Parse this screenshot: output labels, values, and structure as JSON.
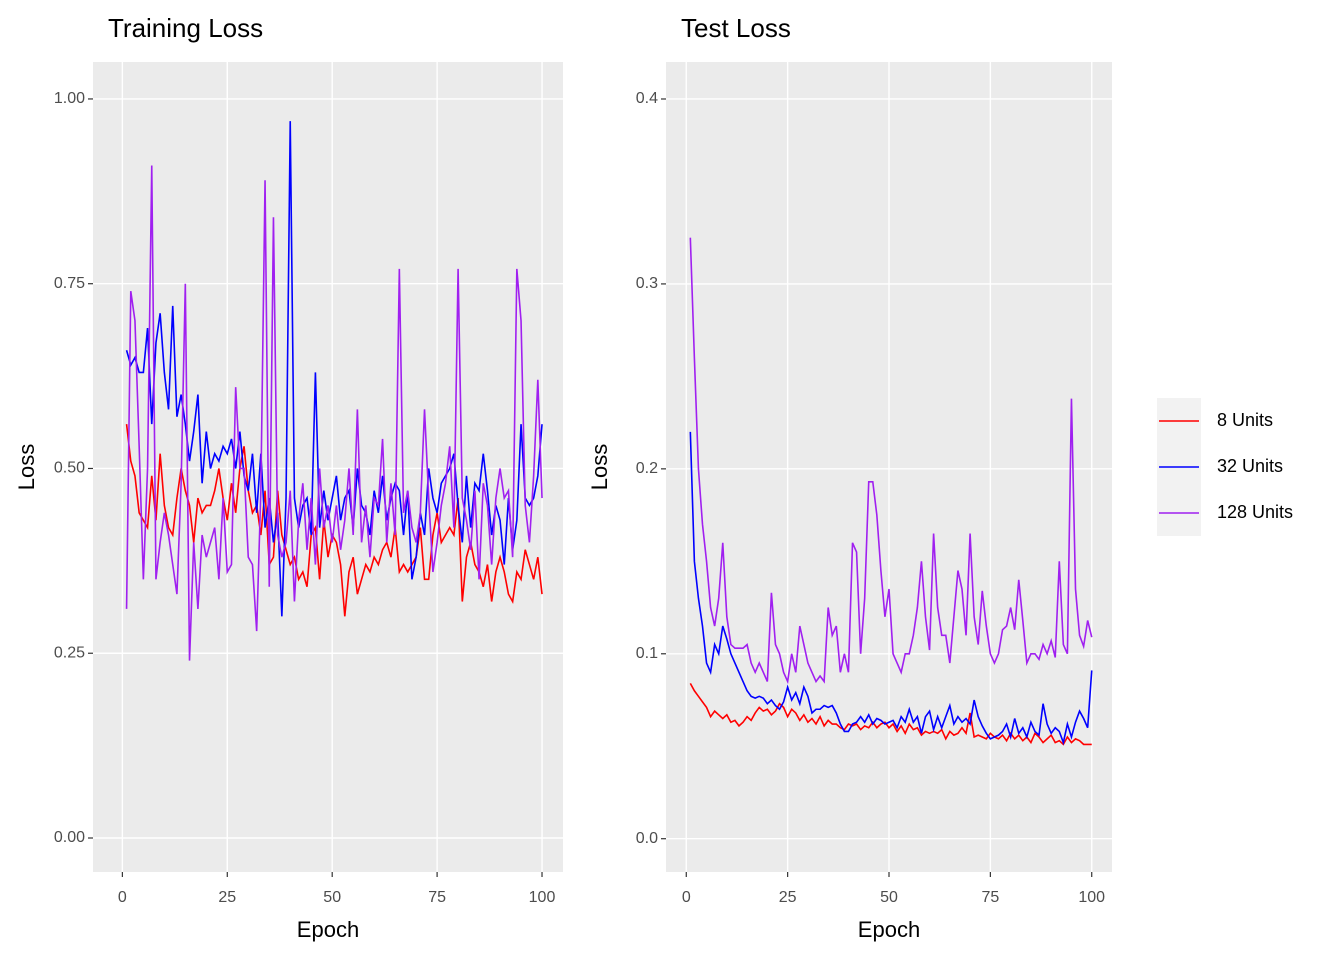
{
  "chart_data": [
    {
      "type": "line",
      "title": "Training Loss",
      "x_label": "Epoch",
      "y_label": "Loss",
      "x": [
        1,
        2,
        3,
        4,
        5,
        6,
        7,
        8,
        9,
        10,
        11,
        12,
        13,
        14,
        15,
        16,
        17,
        18,
        19,
        20,
        21,
        22,
        23,
        24,
        25,
        26,
        27,
        28,
        29,
        30,
        31,
        32,
        33,
        34,
        35,
        36,
        37,
        38,
        39,
        40,
        41,
        42,
        43,
        44,
        45,
        46,
        47,
        48,
        49,
        50,
        51,
        52,
        53,
        54,
        55,
        56,
        57,
        58,
        59,
        60,
        61,
        62,
        63,
        64,
        65,
        66,
        67,
        68,
        69,
        70,
        71,
        72,
        73,
        74,
        75,
        76,
        77,
        78,
        79,
        80,
        81,
        82,
        83,
        84,
        85,
        86,
        87,
        88,
        89,
        90,
        91,
        92,
        93,
        94,
        95,
        96,
        97,
        98,
        99,
        100
      ],
      "series": [
        {
          "name": "8 Units",
          "color": "#ff0000",
          "values": [
            0.56,
            0.51,
            0.49,
            0.44,
            0.43,
            0.42,
            0.49,
            0.43,
            0.52,
            0.45,
            0.42,
            0.41,
            0.46,
            0.5,
            0.47,
            0.45,
            0.4,
            0.46,
            0.44,
            0.45,
            0.45,
            0.47,
            0.5,
            0.46,
            0.43,
            0.48,
            0.44,
            0.5,
            0.53,
            0.47,
            0.44,
            0.45,
            0.41,
            0.47,
            0.37,
            0.38,
            0.47,
            0.41,
            0.39,
            0.37,
            0.38,
            0.35,
            0.36,
            0.34,
            0.41,
            0.42,
            0.35,
            0.43,
            0.38,
            0.41,
            0.4,
            0.37,
            0.3,
            0.36,
            0.38,
            0.33,
            0.35,
            0.37,
            0.36,
            0.38,
            0.37,
            0.39,
            0.4,
            0.38,
            0.42,
            0.36,
            0.37,
            0.36,
            0.37,
            0.38,
            0.42,
            0.35,
            0.35,
            0.41,
            0.44,
            0.4,
            0.41,
            0.42,
            0.41,
            0.46,
            0.32,
            0.38,
            0.4,
            0.37,
            0.36,
            0.34,
            0.37,
            0.32,
            0.36,
            0.38,
            0.36,
            0.33,
            0.32,
            0.36,
            0.35,
            0.39,
            0.37,
            0.35,
            0.38,
            0.33
          ]
        },
        {
          "name": "32 Units",
          "color": "#0000ff",
          "values": [
            0.66,
            0.64,
            0.65,
            0.63,
            0.63,
            0.69,
            0.56,
            0.67,
            0.71,
            0.63,
            0.58,
            0.72,
            0.57,
            0.6,
            0.56,
            0.51,
            0.55,
            0.6,
            0.48,
            0.55,
            0.5,
            0.52,
            0.51,
            0.53,
            0.52,
            0.54,
            0.5,
            0.55,
            0.49,
            0.47,
            0.52,
            0.44,
            0.52,
            0.42,
            0.46,
            0.4,
            0.44,
            0.3,
            0.46,
            0.97,
            0.46,
            0.42,
            0.45,
            0.46,
            0.41,
            0.63,
            0.42,
            0.47,
            0.43,
            0.46,
            0.49,
            0.43,
            0.46,
            0.47,
            0.42,
            0.5,
            0.45,
            0.44,
            0.41,
            0.47,
            0.44,
            0.49,
            0.43,
            0.46,
            0.48,
            0.47,
            0.41,
            0.47,
            0.35,
            0.38,
            0.44,
            0.41,
            0.5,
            0.46,
            0.44,
            0.48,
            0.49,
            0.5,
            0.52,
            0.45,
            0.4,
            0.49,
            0.42,
            0.48,
            0.47,
            0.52,
            0.47,
            0.41,
            0.45,
            0.43,
            0.37,
            0.46,
            0.39,
            0.43,
            0.56,
            0.46,
            0.45,
            0.46,
            0.49,
            0.56
          ]
        },
        {
          "name": "128 Units",
          "color": "#a020f0",
          "values": [
            0.31,
            0.74,
            0.7,
            0.53,
            0.35,
            0.5,
            0.91,
            0.35,
            0.4,
            0.44,
            0.41,
            0.37,
            0.33,
            0.48,
            0.75,
            0.24,
            0.4,
            0.31,
            0.41,
            0.38,
            0.4,
            0.42,
            0.35,
            0.46,
            0.36,
            0.37,
            0.61,
            0.5,
            0.5,
            0.38,
            0.37,
            0.28,
            0.47,
            0.89,
            0.34,
            0.84,
            0.41,
            0.38,
            0.4,
            0.47,
            0.32,
            0.43,
            0.48,
            0.39,
            0.46,
            0.37,
            0.5,
            0.42,
            0.45,
            0.4,
            0.45,
            0.39,
            0.43,
            0.5,
            0.41,
            0.58,
            0.4,
            0.45,
            0.38,
            0.46,
            0.45,
            0.54,
            0.4,
            0.48,
            0.41,
            0.77,
            0.44,
            0.47,
            0.42,
            0.4,
            0.44,
            0.58,
            0.46,
            0.36,
            0.4,
            0.45,
            0.48,
            0.53,
            0.42,
            0.77,
            0.46,
            0.43,
            0.39,
            0.47,
            0.35,
            0.48,
            0.45,
            0.37,
            0.46,
            0.5,
            0.46,
            0.47,
            0.38,
            0.77,
            0.7,
            0.45,
            0.4,
            0.49,
            0.62,
            0.46
          ]
        }
      ],
      "xlim": [
        -7,
        105
      ],
      "xticks": [
        0,
        25,
        50,
        75,
        100
      ],
      "ylim": [
        -0.046,
        1.05
      ],
      "yticks": [
        {
          "value": 0,
          "label": "0.00"
        },
        {
          "value": 0.25,
          "label": "0.25"
        },
        {
          "value": 0.5,
          "label": "0.50"
        },
        {
          "value": 0.75,
          "label": "0.75"
        },
        {
          "value": 1,
          "label": "1.00"
        }
      ],
      "grid": true,
      "legend": "right"
    },
    {
      "type": "line",
      "title": "Test Loss",
      "x_label": "Epoch",
      "y_label": "Loss",
      "x": [
        1,
        2,
        3,
        4,
        5,
        6,
        7,
        8,
        9,
        10,
        11,
        12,
        13,
        14,
        15,
        16,
        17,
        18,
        19,
        20,
        21,
        22,
        23,
        24,
        25,
        26,
        27,
        28,
        29,
        30,
        31,
        32,
        33,
        34,
        35,
        36,
        37,
        38,
        39,
        40,
        41,
        42,
        43,
        44,
        45,
        46,
        47,
        48,
        49,
        50,
        51,
        52,
        53,
        54,
        55,
        56,
        57,
        58,
        59,
        60,
        61,
        62,
        63,
        64,
        65,
        66,
        67,
        68,
        69,
        70,
        71,
        72,
        73,
        74,
        75,
        76,
        77,
        78,
        79,
        80,
        81,
        82,
        83,
        84,
        85,
        86,
        87,
        88,
        89,
        90,
        91,
        92,
        93,
        94,
        95,
        96,
        97,
        98,
        99,
        100
      ],
      "series": [
        {
          "name": "8 Units",
          "color": "#ff0000",
          "values": [
            0.084,
            0.08,
            0.077,
            0.074,
            0.071,
            0.066,
            0.069,
            0.067,
            0.065,
            0.067,
            0.063,
            0.064,
            0.061,
            0.063,
            0.066,
            0.064,
            0.068,
            0.071,
            0.069,
            0.07,
            0.067,
            0.069,
            0.073,
            0.071,
            0.066,
            0.07,
            0.068,
            0.064,
            0.067,
            0.063,
            0.065,
            0.062,
            0.066,
            0.061,
            0.064,
            0.062,
            0.062,
            0.06,
            0.059,
            0.062,
            0.061,
            0.062,
            0.059,
            0.061,
            0.06,
            0.063,
            0.06,
            0.062,
            0.063,
            0.06,
            0.062,
            0.058,
            0.061,
            0.057,
            0.062,
            0.059,
            0.06,
            0.056,
            0.058,
            0.057,
            0.058,
            0.057,
            0.059,
            0.054,
            0.058,
            0.056,
            0.057,
            0.06,
            0.057,
            0.068,
            0.055,
            0.056,
            0.055,
            0.054,
            0.057,
            0.055,
            0.054,
            0.056,
            0.053,
            0.057,
            0.054,
            0.056,
            0.053,
            0.055,
            0.052,
            0.057,
            0.055,
            0.052,
            0.054,
            0.056,
            0.052,
            0.053,
            0.051,
            0.055,
            0.052,
            0.054,
            0.053,
            0.051,
            0.051,
            0.051
          ]
        },
        {
          "name": "32 Units",
          "color": "#0000ff",
          "values": [
            0.22,
            0.15,
            0.13,
            0.115,
            0.095,
            0.09,
            0.105,
            0.1,
            0.115,
            0.108,
            0.1,
            0.095,
            0.09,
            0.085,
            0.08,
            0.077,
            0.076,
            0.077,
            0.076,
            0.073,
            0.075,
            0.072,
            0.07,
            0.074,
            0.082,
            0.075,
            0.079,
            0.073,
            0.082,
            0.077,
            0.068,
            0.07,
            0.07,
            0.072,
            0.071,
            0.072,
            0.068,
            0.062,
            0.058,
            0.058,
            0.062,
            0.063,
            0.066,
            0.063,
            0.067,
            0.062,
            0.065,
            0.064,
            0.062,
            0.063,
            0.064,
            0.06,
            0.066,
            0.063,
            0.07,
            0.063,
            0.066,
            0.057,
            0.066,
            0.069,
            0.059,
            0.066,
            0.06,
            0.066,
            0.072,
            0.062,
            0.066,
            0.063,
            0.065,
            0.062,
            0.075,
            0.066,
            0.061,
            0.057,
            0.054,
            0.055,
            0.056,
            0.058,
            0.062,
            0.055,
            0.065,
            0.057,
            0.06,
            0.055,
            0.063,
            0.058,
            0.056,
            0.073,
            0.062,
            0.057,
            0.06,
            0.058,
            0.052,
            0.062,
            0.055,
            0.063,
            0.069,
            0.065,
            0.06,
            0.091
          ]
        },
        {
          "name": "128 Units",
          "color": "#a020f0",
          "values": [
            0.325,
            0.26,
            0.2,
            0.17,
            0.15,
            0.125,
            0.115,
            0.13,
            0.16,
            0.12,
            0.105,
            0.103,
            0.103,
            0.103,
            0.105,
            0.095,
            0.09,
            0.095,
            0.09,
            0.085,
            0.133,
            0.105,
            0.1,
            0.09,
            0.085,
            0.1,
            0.09,
            0.115,
            0.105,
            0.095,
            0.09,
            0.085,
            0.088,
            0.085,
            0.125,
            0.11,
            0.115,
            0.09,
            0.1,
            0.09,
            0.16,
            0.155,
            0.1,
            0.13,
            0.193,
            0.193,
            0.175,
            0.145,
            0.12,
            0.135,
            0.1,
            0.095,
            0.09,
            0.1,
            0.1,
            0.11,
            0.125,
            0.15,
            0.12,
            0.102,
            0.165,
            0.125,
            0.11,
            0.11,
            0.095,
            0.12,
            0.145,
            0.135,
            0.11,
            0.165,
            0.12,
            0.105,
            0.134,
            0.115,
            0.1,
            0.095,
            0.1,
            0.113,
            0.115,
            0.125,
            0.113,
            0.14,
            0.118,
            0.095,
            0.1,
            0.1,
            0.097,
            0.105,
            0.1,
            0.107,
            0.098,
            0.15,
            0.105,
            0.1,
            0.238,
            0.135,
            0.11,
            0.104,
            0.118,
            0.109
          ]
        }
      ],
      "xlim": [
        -5,
        105
      ],
      "xticks": [
        0,
        25,
        50,
        75,
        100
      ],
      "ylim": [
        -0.018,
        0.42
      ],
      "yticks": [
        {
          "value": 0,
          "label": "0.0"
        },
        0.1,
        0.2,
        0.3,
        0.4
      ],
      "grid": true
    }
  ]
}
